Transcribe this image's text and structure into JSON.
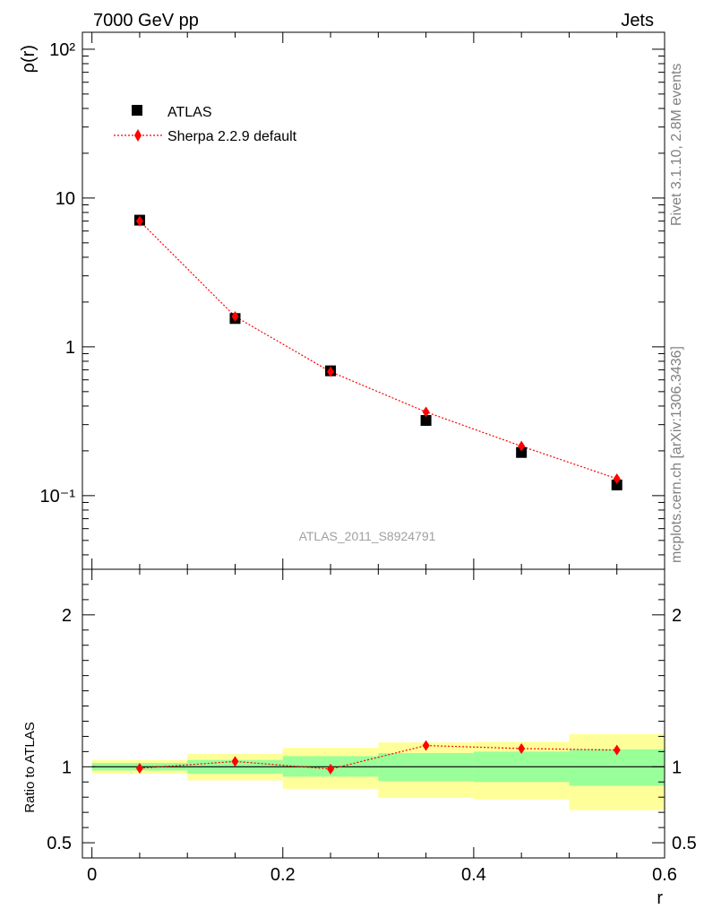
{
  "header": {
    "left_label": "7000 GeV pp",
    "right_label": "Jets"
  },
  "side_labels": {
    "rivet": "Rivet 3.1.10,  2.8M events",
    "mcplots": "mcplots.cern.ch [arXiv:1306.3436]"
  },
  "watermark": "ATLAS_2011_S8924791",
  "colors": {
    "mc": "#ff0000",
    "data": "#000000",
    "band_stat": "#99ff99",
    "band_total": "#ffff99"
  },
  "chart_data": [
    {
      "type": "scatter",
      "panel": "main",
      "ylabel": "ρ(r)",
      "xlabel": "",
      "xlim": [
        -0.01,
        0.6
      ],
      "ylim": [
        0.032,
        130
      ],
      "yscale": "log",
      "ytick_labels": [
        "10⁻¹",
        "1",
        "10",
        "10²"
      ],
      "legend_position": "top-left",
      "series": [
        {
          "name": "ATLAS",
          "marker": "square",
          "x": [
            0.05,
            0.15,
            0.25,
            0.35,
            0.45,
            0.55
          ],
          "y": [
            7.1,
            1.55,
            0.69,
            0.32,
            0.195,
            0.118
          ]
        },
        {
          "name": "Sherpa 2.2.9 default",
          "marker": "diamond",
          "line": "dotted",
          "x": [
            0.05,
            0.15,
            0.25,
            0.35,
            0.45,
            0.55
          ],
          "y": [
            7.0,
            1.6,
            0.68,
            0.365,
            0.215,
            0.13
          ]
        }
      ]
    },
    {
      "type": "scatter",
      "panel": "ratio",
      "ylabel": "Ratio to ATLAS",
      "xlabel": "r",
      "xlim": [
        -0.01,
        0.6
      ],
      "ylim": [
        0.4,
        2.3
      ],
      "xtick_labels": [
        "0",
        "0.2",
        "0.4",
        "0.6"
      ],
      "ytick_labels": [
        "0.5",
        "1",
        "2"
      ],
      "reference": 1,
      "bands": {
        "x_edges": [
          0.0,
          0.1,
          0.2,
          0.3,
          0.4,
          0.5,
          0.6
        ],
        "stat_low": [
          0.975,
          0.955,
          0.935,
          0.905,
          0.9,
          0.875
        ],
        "stat_high": [
          1.025,
          1.045,
          1.07,
          1.09,
          1.1,
          1.115
        ],
        "total_low": [
          0.955,
          0.91,
          0.855,
          0.795,
          0.785,
          0.715
        ],
        "total_high": [
          1.045,
          1.085,
          1.125,
          1.16,
          1.165,
          1.215
        ]
      },
      "series": [
        {
          "name": "Sherpa 2.2.9 default",
          "marker": "diamond",
          "line": "dotted",
          "x": [
            0.05,
            0.15,
            0.25,
            0.35,
            0.45,
            0.55
          ],
          "y": [
            0.99,
            1.035,
            0.985,
            1.14,
            1.12,
            1.11
          ]
        }
      ]
    }
  ]
}
